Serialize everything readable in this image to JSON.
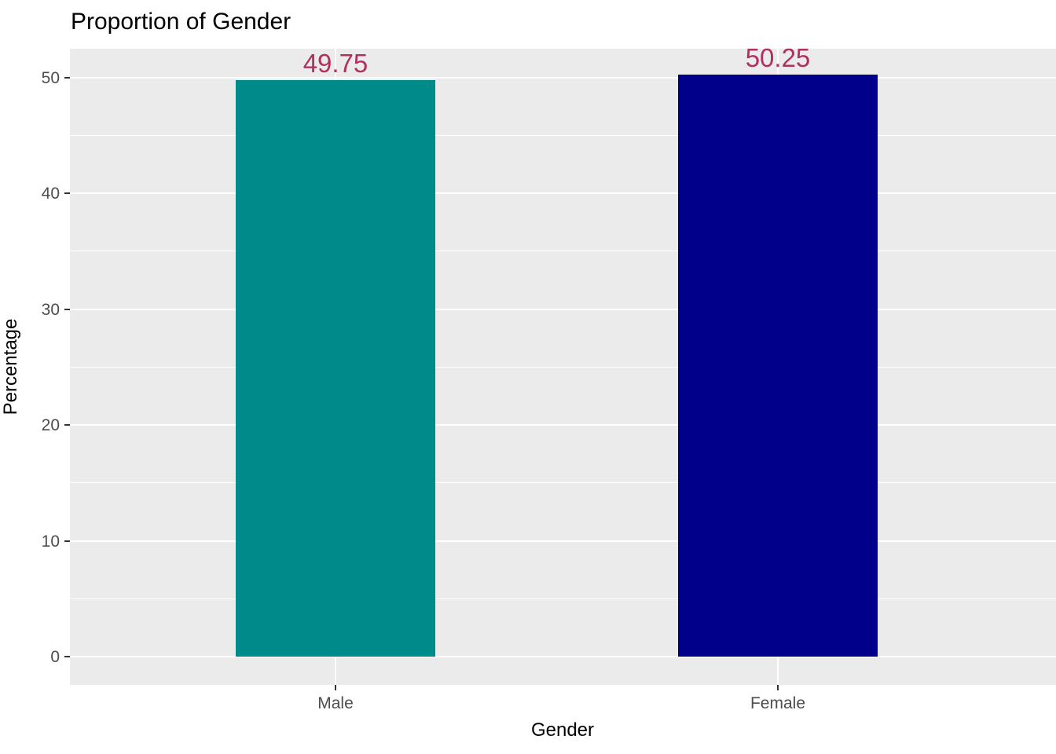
{
  "chart_data": {
    "type": "bar",
    "title": "Proportion of Gender",
    "xlabel": "Gender",
    "ylabel": "Percentage",
    "categories": [
      "Male",
      "Female"
    ],
    "values": [
      49.75,
      50.25
    ],
    "value_labels": [
      "49.75",
      "50.25"
    ],
    "bar_colors": [
      "#008B8B",
      "#00008B"
    ],
    "value_label_color": "#B03060",
    "yticks": [
      0,
      10,
      20,
      30,
      40,
      50
    ],
    "ytick_labels": [
      "0",
      "10",
      "20",
      "30",
      "40",
      "50"
    ],
    "yminor": [
      5,
      15,
      25,
      35,
      45
    ],
    "ylim": [
      0,
      52.5
    ],
    "grid": "on",
    "legend": "none",
    "panel_background": "#EBEBEB",
    "gridline_color": "#FFFFFF",
    "tick_label_color": "#4D4D4D",
    "axis_title_color": "#000000",
    "title_color": "#000000"
  }
}
